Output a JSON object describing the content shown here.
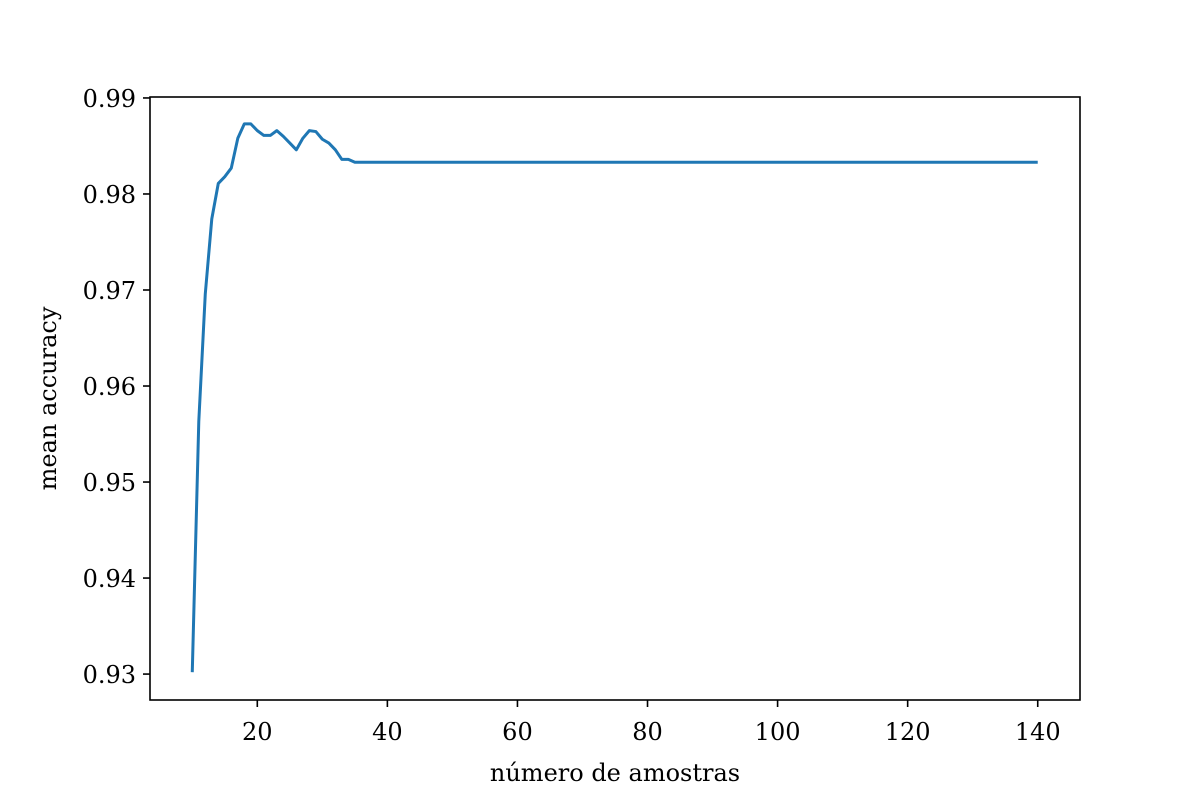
{
  "chart_data": {
    "type": "line",
    "title": "",
    "xlabel": "número de amostras",
    "ylabel": "mean accuracy",
    "xlim": [
      3.5,
      146.5
    ],
    "ylim": [
      0.9273,
      0.9901
    ],
    "xticks": [
      20,
      40,
      60,
      80,
      100,
      120,
      140
    ],
    "xtick_labels": [
      "20",
      "40",
      "60",
      "80",
      "100",
      "120",
      "140"
    ],
    "yticks": [
      0.93,
      0.94,
      0.95,
      0.96,
      0.97,
      0.98,
      0.99
    ],
    "ytick_labels": [
      "0.93",
      "0.94",
      "0.95",
      "0.96",
      "0.97",
      "0.98",
      "0.99"
    ],
    "grid": false,
    "series": [
      {
        "color": "#1f77b4",
        "x": [
          10,
          11,
          12,
          13,
          14,
          15,
          16,
          17,
          18,
          19,
          20,
          21,
          22,
          23,
          24,
          25,
          26,
          27,
          28,
          29,
          30,
          31,
          32,
          33,
          34,
          35,
          40,
          60,
          80,
          100,
          120,
          140
        ],
        "y": [
          0.9302,
          0.9563,
          0.9696,
          0.9774,
          0.9811,
          0.9818,
          0.9827,
          0.9858,
          0.9873,
          0.9873,
          0.9866,
          0.9861,
          0.9861,
          0.9866,
          0.986,
          0.9853,
          0.9846,
          0.9858,
          0.9866,
          0.9865,
          0.9857,
          0.9853,
          0.9846,
          0.9836,
          0.9836,
          0.9833,
          0.9833,
          0.9833,
          0.9833,
          0.9833,
          0.9833,
          0.9833
        ]
      }
    ]
  }
}
